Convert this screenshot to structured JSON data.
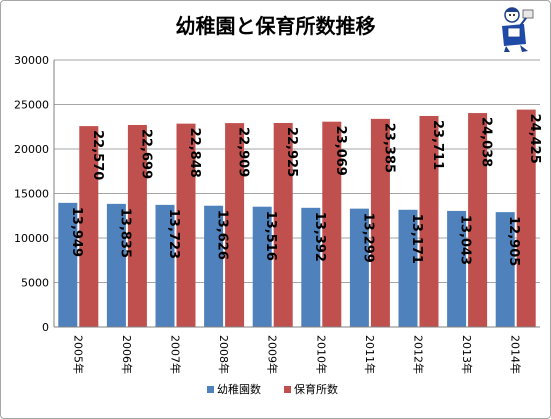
{
  "chart_data": {
    "type": "bar",
    "title": "幼稚園と保育所数推移",
    "categories": [
      "2005年",
      "2006年",
      "2007年",
      "2008年",
      "2009年",
      "2010年",
      "2011年",
      "2012年",
      "2013年",
      "2014年"
    ],
    "series": [
      {
        "name": "幼稚園数",
        "color": "#4f81bd",
        "values": [
          13949,
          13835,
          13723,
          13626,
          13516,
          13392,
          13299,
          13171,
          13043,
          12905
        ],
        "labels": [
          "13,949",
          "13,835",
          "13,723",
          "13,626",
          "13,516",
          "13,392",
          "13,299",
          "13,171",
          "13,043",
          "12,905"
        ]
      },
      {
        "name": "保育所数",
        "color": "#c0504d",
        "values": [
          22570,
          22699,
          22848,
          22909,
          22925,
          23069,
          23385,
          23711,
          24038,
          24425
        ],
        "labels": [
          "22,570",
          "22,699",
          "22,848",
          "22,909",
          "22,925",
          "23,069",
          "23,385",
          "23,711",
          "24,038",
          "24,425"
        ]
      }
    ],
    "ylim": [
      0,
      30000
    ],
    "yticks": [
      0,
      5000,
      10000,
      15000,
      20000,
      25000,
      30000
    ],
    "ytick_labels": [
      "0",
      "5000",
      "10000",
      "15000",
      "20000",
      "25000",
      "30000"
    ],
    "grid": true,
    "legend": "bottom"
  },
  "mascot_icon": "chart-mascot-icon"
}
